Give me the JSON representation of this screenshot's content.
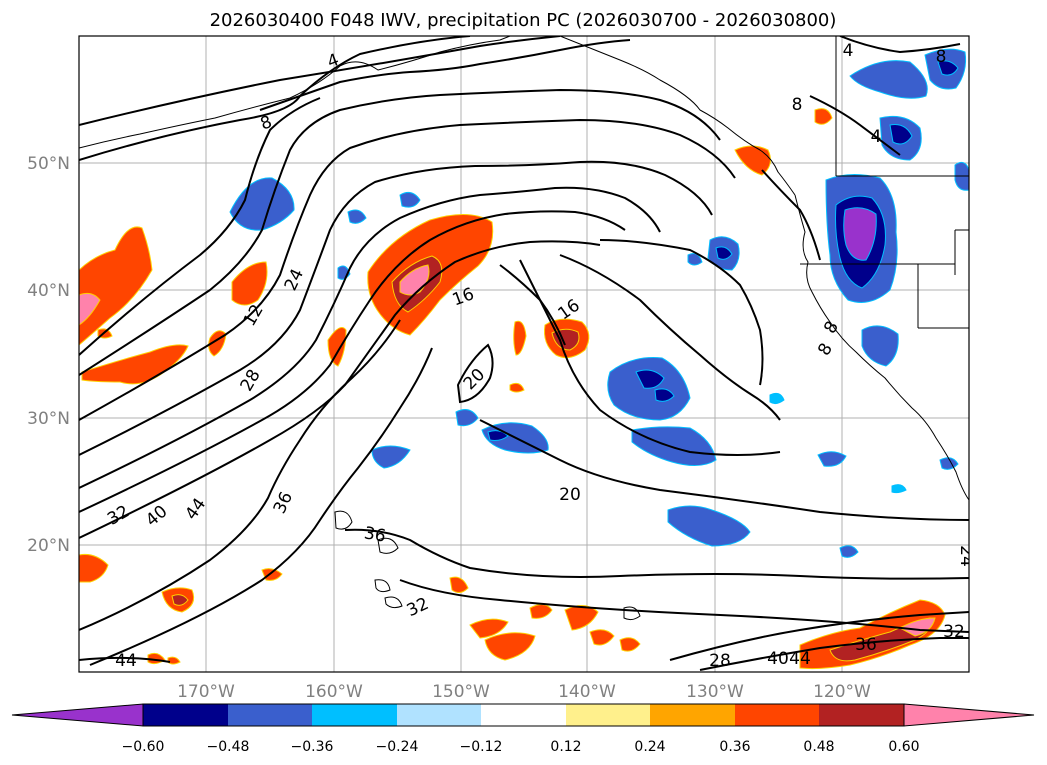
{
  "title": "2026030400 F048 IWV, precipitation PC (2026030700 - 2026030800)",
  "axes": {
    "longitude_labels": [
      "170°W",
      "160°W",
      "150°W",
      "140°W",
      "130°W",
      "120°W"
    ],
    "latitude_labels": [
      "50°N",
      "40°N",
      "30°N",
      "20°N"
    ]
  },
  "colorbar": {
    "tick_labels": [
      "−0.60",
      "−0.48",
      "−0.36",
      "−0.24",
      "−0.12",
      "0.12",
      "0.24",
      "0.36",
      "0.48",
      "0.60"
    ],
    "colors": [
      "#9932cc",
      "#00008b",
      "#3a5fcd",
      "#00bfff",
      "#b0e2ff",
      "#ffffff",
      "#fff08c",
      "#ffa500",
      "#ff4500",
      "#b22222",
      "#ff82ab",
      "#ff82ab"
    ]
  },
  "contour_labels": [
    "4",
    "4",
    "8",
    "8",
    "8",
    "4",
    "12",
    "24",
    "28",
    "32",
    "40",
    "44",
    "36",
    "16",
    "16",
    "20",
    "20",
    "36",
    "32",
    "28",
    "40",
    "44",
    "36",
    "32",
    "24",
    "44",
    "8",
    "8"
  ],
  "colors": {
    "contour": "#000000",
    "coast": "#000000",
    "grid": "#b0b0b0",
    "axis_text": "#808080"
  }
}
